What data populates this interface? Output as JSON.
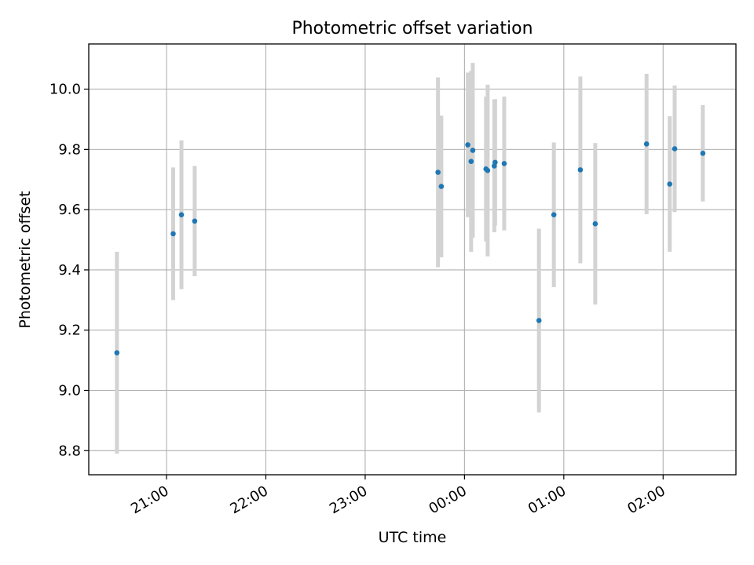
{
  "chart_data": {
    "type": "scatter",
    "title": "Photometric offset variation",
    "xlabel": "UTC time",
    "ylabel": "Photometric offset",
    "x_axis": {
      "type": "time",
      "range": [
        "2024-01-01T20:13:00",
        "2024-01-02T02:44:00"
      ],
      "ticks": [
        {
          "t": "2024-01-01T21:00:00",
          "label": "21:00"
        },
        {
          "t": "2024-01-01T22:00:00",
          "label": "22:00"
        },
        {
          "t": "2024-01-01T23:00:00",
          "label": "23:00"
        },
        {
          "t": "2024-01-02T00:00:00",
          "label": "00:00"
        },
        {
          "t": "2024-01-02T01:00:00",
          "label": "01:00"
        },
        {
          "t": "2024-01-02T02:00:00",
          "label": "02:00"
        }
      ]
    },
    "y_axis": {
      "range": [
        8.72,
        10.15
      ],
      "ticks": [
        8.8,
        9.0,
        9.2,
        9.4,
        9.6,
        9.8,
        10.0
      ],
      "tick_labels": [
        "8.8",
        "9.0",
        "9.2",
        "9.4",
        "9.6",
        "9.8",
        "10.0"
      ]
    },
    "grid": true,
    "colors": {
      "points": "#1f77b4",
      "error_bars": "#d3d3d3",
      "grid": "#b0b0b0"
    },
    "series": [
      {
        "points": [
          {
            "x": "2024-01-01T20:30:00",
            "y": 9.125,
            "yerr": 0.335
          },
          {
            "x": "2024-01-01T21:04:00",
            "y": 9.52,
            "yerr": 0.22
          },
          {
            "x": "2024-01-01T21:09:00",
            "y": 9.583,
            "yerr": 0.247
          },
          {
            "x": "2024-01-01T21:17:00",
            "y": 9.562,
            "yerr": 0.183
          },
          {
            "x": "2024-01-01T23:44:00",
            "y": 9.724,
            "yerr": 0.315
          },
          {
            "x": "2024-01-01T23:46:00",
            "y": 9.677,
            "yerr": 0.235
          },
          {
            "x": "2024-01-02T00:02:00",
            "y": 9.815,
            "yerr": 0.24
          },
          {
            "x": "2024-01-02T00:04:00",
            "y": 9.76,
            "yerr": 0.3
          },
          {
            "x": "2024-01-02T00:05:00",
            "y": 9.797,
            "yerr": 0.29
          },
          {
            "x": "2024-01-02T00:13:00",
            "y": 9.735,
            "yerr": 0.24
          },
          {
            "x": "2024-01-02T00:14:00",
            "y": 9.73,
            "yerr": 0.285
          },
          {
            "x": "2024-01-02T00:18:00",
            "y": 9.745,
            "yerr": 0.22
          },
          {
            "x": "2024-01-02T00:18:30",
            "y": 9.757,
            "yerr": 0.21
          },
          {
            "x": "2024-01-02T00:24:00",
            "y": 9.753,
            "yerr": 0.222
          },
          {
            "x": "2024-01-02T00:45:00",
            "y": 9.232,
            "yerr": 0.305
          },
          {
            "x": "2024-01-02T00:54:00",
            "y": 9.583,
            "yerr": 0.24
          },
          {
            "x": "2024-01-02T01:10:00",
            "y": 9.732,
            "yerr": 0.31
          },
          {
            "x": "2024-01-02T01:19:00",
            "y": 9.553,
            "yerr": 0.268
          },
          {
            "x": "2024-01-02T01:50:00",
            "y": 9.818,
            "yerr": 0.233
          },
          {
            "x": "2024-01-02T02:04:00",
            "y": 9.685,
            "yerr": 0.225
          },
          {
            "x": "2024-01-02T02:07:00",
            "y": 9.802,
            "yerr": 0.21
          },
          {
            "x": "2024-01-02T02:24:00",
            "y": 9.787,
            "yerr": 0.16
          }
        ]
      }
    ]
  }
}
